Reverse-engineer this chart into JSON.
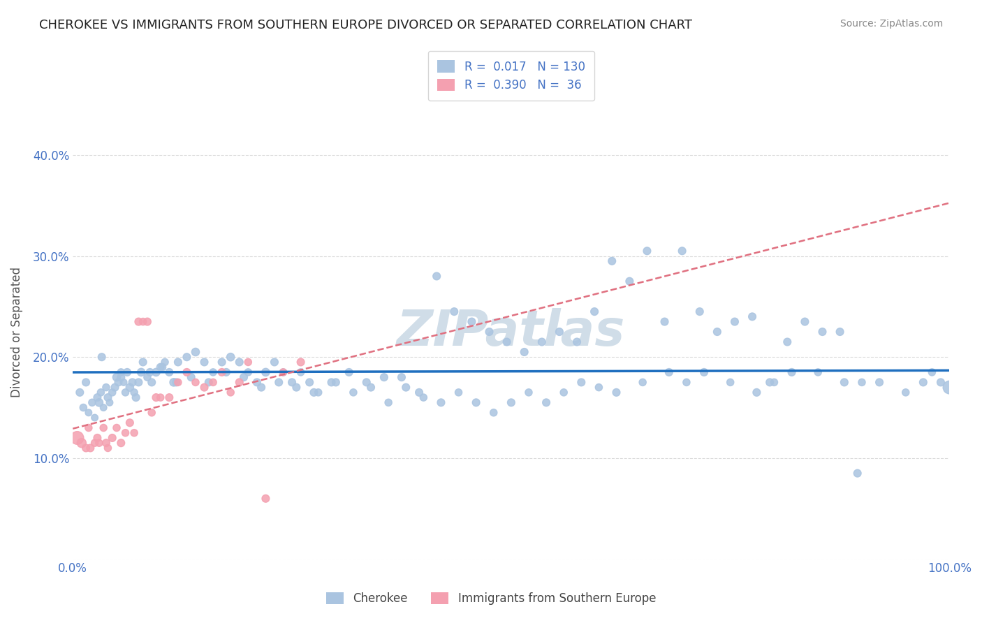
{
  "title": "CHEROKEE VS IMMIGRANTS FROM SOUTHERN EUROPE DIVORCED OR SEPARATED CORRELATION CHART",
  "source": "Source: ZipAtlas.com",
  "ylabel": "Divorced or Separated",
  "xlim": [
    0.0,
    1.0
  ],
  "ylim": [
    0.0,
    0.45
  ],
  "x_ticks": [
    0.0,
    0.2,
    0.4,
    0.6,
    0.8,
    1.0
  ],
  "x_tick_labels": [
    "0.0%",
    "",
    "",
    "",
    "",
    "100.0%"
  ],
  "y_ticks": [
    0.0,
    0.1,
    0.2,
    0.3,
    0.4
  ],
  "y_tick_labels": [
    "",
    "10.0%",
    "20.0%",
    "30.0%",
    "40.0%"
  ],
  "bg_color": "#ffffff",
  "grid_color": "#cccccc",
  "cherokee_color": "#aac4e0",
  "immigrants_color": "#f4a0b0",
  "cherokee_line_color": "#1f6fbf",
  "immigrants_line_color": "#e07080",
  "legend_cherokee_r": "0.017",
  "legend_cherokee_n": "130",
  "legend_immigrants_r": "0.390",
  "legend_immigrants_n": "36",
  "cherokee_x": [
    0.008,
    0.012,
    0.018,
    0.022,
    0.025,
    0.028,
    0.03,
    0.032,
    0.035,
    0.038,
    0.04,
    0.042,
    0.045,
    0.048,
    0.05,
    0.052,
    0.055,
    0.058,
    0.06,
    0.062,
    0.065,
    0.068,
    0.07,
    0.075,
    0.078,
    0.08,
    0.085,
    0.09,
    0.095,
    0.1,
    0.105,
    0.11,
    0.115,
    0.12,
    0.13,
    0.14,
    0.15,
    0.16,
    0.17,
    0.18,
    0.19,
    0.2,
    0.21,
    0.22,
    0.23,
    0.24,
    0.25,
    0.26,
    0.27,
    0.28,
    0.3,
    0.32,
    0.34,
    0.36,
    0.38,
    0.4,
    0.42,
    0.44,
    0.46,
    0.48,
    0.5,
    0.52,
    0.54,
    0.56,
    0.58,
    0.6,
    0.62,
    0.65,
    0.68,
    0.7,
    0.72,
    0.75,
    0.78,
    0.8,
    0.82,
    0.85,
    0.88,
    0.9,
    0.92,
    0.95,
    0.97,
    0.98,
    0.99,
    1.0,
    0.015,
    0.033,
    0.055,
    0.072,
    0.088,
    0.102,
    0.118,
    0.135,
    0.155,
    0.175,
    0.195,
    0.215,
    0.235,
    0.255,
    0.275,
    0.295,
    0.315,
    0.335,
    0.355,
    0.375,
    0.395,
    0.415,
    0.435,
    0.455,
    0.475,
    0.495,
    0.515,
    0.535,
    0.555,
    0.575,
    0.595,
    0.615,
    0.635,
    0.655,
    0.675,
    0.695,
    0.715,
    0.735,
    0.755,
    0.775,
    0.795,
    0.815,
    0.835,
    0.855,
    0.875,
    0.895
  ],
  "cherokee_y": [
    0.165,
    0.15,
    0.145,
    0.155,
    0.14,
    0.16,
    0.155,
    0.165,
    0.15,
    0.17,
    0.16,
    0.155,
    0.165,
    0.17,
    0.18,
    0.175,
    0.185,
    0.175,
    0.165,
    0.185,
    0.17,
    0.175,
    0.165,
    0.175,
    0.185,
    0.195,
    0.18,
    0.175,
    0.185,
    0.19,
    0.195,
    0.185,
    0.175,
    0.195,
    0.2,
    0.205,
    0.195,
    0.185,
    0.195,
    0.2,
    0.195,
    0.185,
    0.175,
    0.185,
    0.195,
    0.185,
    0.175,
    0.185,
    0.175,
    0.165,
    0.175,
    0.165,
    0.17,
    0.155,
    0.17,
    0.16,
    0.155,
    0.165,
    0.155,
    0.145,
    0.155,
    0.165,
    0.155,
    0.165,
    0.175,
    0.17,
    0.165,
    0.175,
    0.185,
    0.175,
    0.185,
    0.175,
    0.165,
    0.175,
    0.185,
    0.185,
    0.175,
    0.175,
    0.175,
    0.165,
    0.175,
    0.185,
    0.175,
    0.17,
    0.175,
    0.2,
    0.18,
    0.16,
    0.185,
    0.19,
    0.175,
    0.18,
    0.175,
    0.185,
    0.18,
    0.17,
    0.175,
    0.17,
    0.165,
    0.175,
    0.185,
    0.175,
    0.18,
    0.18,
    0.165,
    0.28,
    0.245,
    0.235,
    0.225,
    0.215,
    0.205,
    0.215,
    0.225,
    0.215,
    0.245,
    0.295,
    0.275,
    0.305,
    0.235,
    0.305,
    0.245,
    0.225,
    0.235,
    0.24,
    0.175,
    0.215,
    0.235,
    0.225,
    0.225,
    0.085
  ],
  "cherokee_sizes": [
    20,
    18,
    16,
    18,
    16,
    20,
    22,
    18,
    16,
    18,
    20,
    16,
    18,
    20,
    22,
    20,
    18,
    16,
    18,
    20,
    22,
    20,
    18,
    20,
    22,
    20,
    18,
    20,
    22,
    20,
    18,
    20,
    22,
    20,
    20,
    22,
    20,
    18,
    20,
    22,
    20,
    18,
    20,
    22,
    20,
    18,
    20,
    18,
    20,
    18,
    20,
    18,
    20,
    18,
    20,
    18,
    20,
    18,
    20,
    18,
    20,
    18,
    20,
    18,
    20,
    18,
    20,
    18,
    20,
    18,
    20,
    18,
    20,
    18,
    20,
    18,
    20,
    18,
    20,
    18,
    20,
    18,
    20,
    60,
    20,
    20,
    20,
    20,
    20,
    20,
    20,
    20,
    20,
    20,
    20,
    20,
    20,
    20,
    20,
    20,
    20,
    20,
    20,
    20,
    20,
    20,
    20,
    20,
    20,
    20,
    20,
    20,
    20,
    20,
    20,
    20,
    20,
    20,
    20,
    20,
    20,
    20,
    20,
    20,
    20,
    20,
    20,
    20,
    20,
    20
  ],
  "immigrants_x": [
    0.005,
    0.01,
    0.015,
    0.018,
    0.02,
    0.025,
    0.028,
    0.03,
    0.035,
    0.038,
    0.04,
    0.045,
    0.05,
    0.055,
    0.06,
    0.065,
    0.07,
    0.075,
    0.08,
    0.085,
    0.09,
    0.095,
    0.1,
    0.11,
    0.12,
    0.13,
    0.14,
    0.15,
    0.16,
    0.17,
    0.18,
    0.19,
    0.2,
    0.22,
    0.24,
    0.26
  ],
  "immigrants_y": [
    0.12,
    0.115,
    0.11,
    0.13,
    0.11,
    0.115,
    0.12,
    0.115,
    0.13,
    0.115,
    0.11,
    0.12,
    0.13,
    0.115,
    0.125,
    0.135,
    0.125,
    0.235,
    0.235,
    0.235,
    0.145,
    0.16,
    0.16,
    0.16,
    0.175,
    0.185,
    0.175,
    0.17,
    0.175,
    0.185,
    0.165,
    0.175,
    0.195,
    0.06,
    0.185,
    0.195
  ],
  "immigrants_sizes": [
    60,
    30,
    20,
    18,
    20,
    18,
    20,
    18,
    18,
    20,
    18,
    20,
    18,
    20,
    18,
    20,
    18,
    20,
    18,
    20,
    18,
    20,
    18,
    20,
    18,
    20,
    18,
    20,
    18,
    20,
    18,
    20,
    18,
    20,
    18,
    20
  ],
  "watermark": "ZIPatlas",
  "watermark_color": "#d0dde8"
}
